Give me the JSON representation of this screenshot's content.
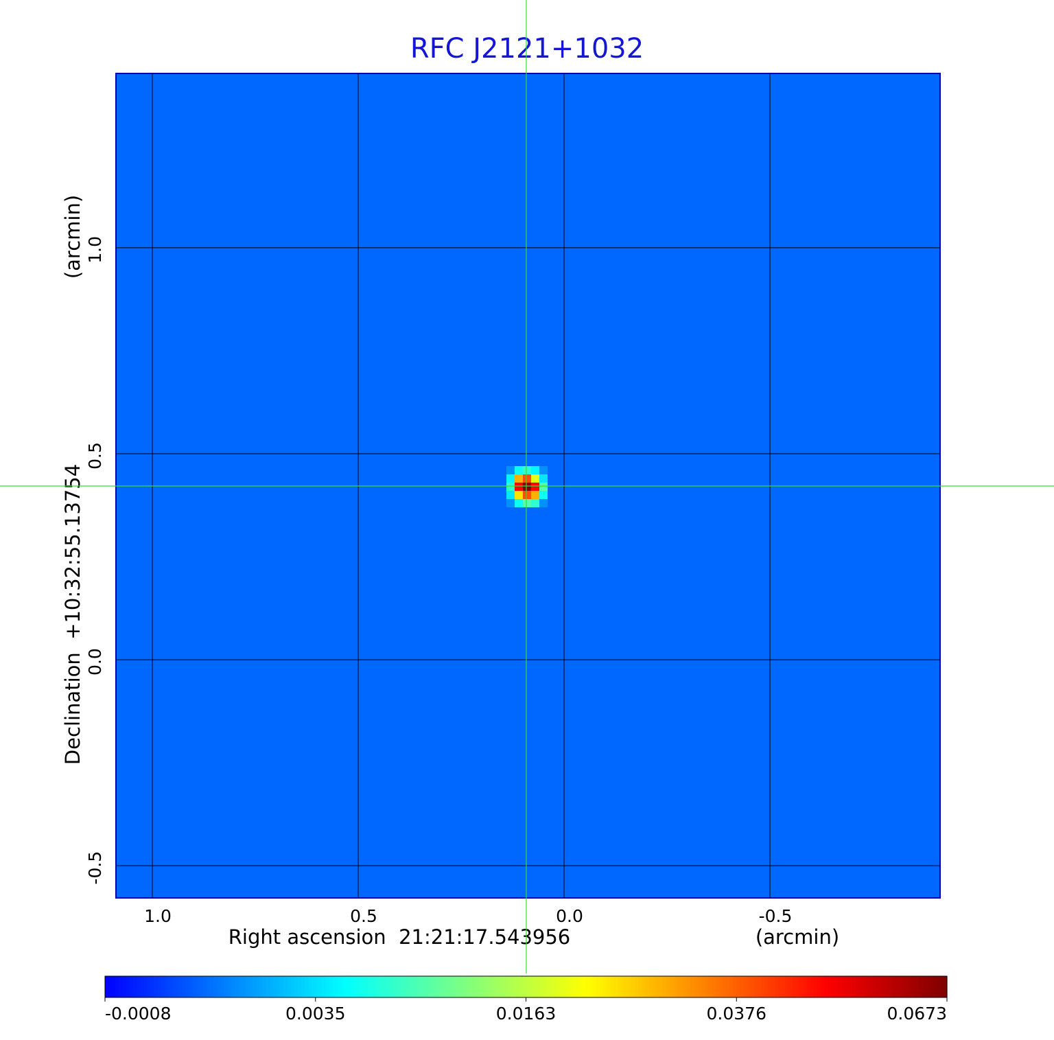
{
  "chart_data": {
    "type": "heatmap",
    "title": "RFC J2121+1032",
    "x_label": "Right ascension  21:21:17.543956",
    "x_unit": "(arcmin)",
    "y_label": "Declination  +10:32:55.13754",
    "y_unit": "(arcmin)",
    "xlim": [
      1.0883,
      -0.9133
    ],
    "ylim": [
      -0.578,
      1.423
    ],
    "xticks": [
      {
        "value": 1,
        "label": "1.0"
      },
      0.5,
      {
        "value": 0,
        "label": "0.0"
      },
      -0.5
    ],
    "yticks": [
      {
        "value": -0.5,
        "label": "-0.5"
      },
      {
        "value": 0,
        "label": "0.0"
      },
      0.5,
      {
        "value": 1,
        "label": "1.0"
      }
    ],
    "grid": true,
    "crosshair": {
      "x": 0.0917,
      "y": 0.4217,
      "color": "#33dd33"
    },
    "background": 0.0012,
    "cell_size": 0.02,
    "x": [
      0.13,
      0.11,
      0.09,
      0.07,
      0.05
    ],
    "y": [
      0.46,
      0.44,
      0.42,
      0.4,
      0.38
    ],
    "values": [
      [
        0.002,
        0.006,
        0.008,
        0.005,
        0.002
      ],
      [
        0.005,
        0.03,
        0.04,
        0.02,
        0.004
      ],
      [
        0.008,
        0.05,
        0.0673,
        0.05,
        0.01
      ],
      [
        0.004,
        0.025,
        0.04,
        0.03,
        0.006
      ],
      [
        0.002,
        0.006,
        0.01,
        0.008,
        0.002
      ]
    ],
    "colorbar": {
      "lim": [
        -0.0008,
        0.0673
      ],
      "ticks": [
        -0.0008,
        0.0035,
        0.0163,
        0.0376,
        0.0673
      ]
    }
  }
}
